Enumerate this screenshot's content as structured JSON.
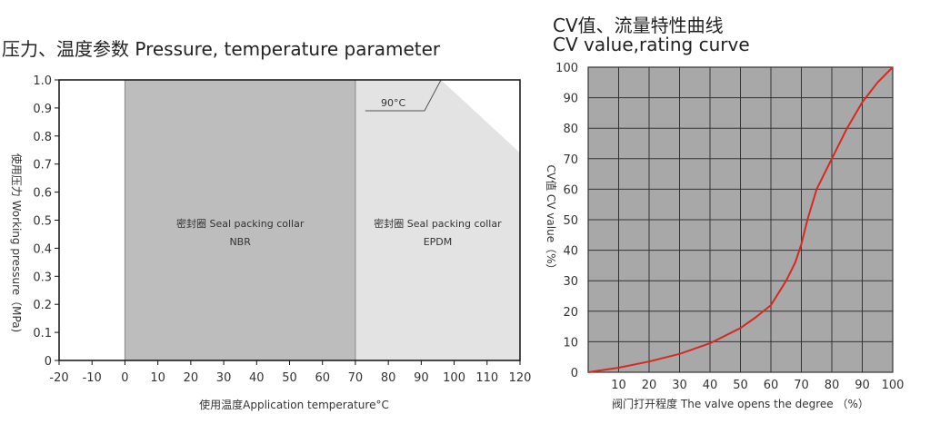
{
  "chart_data": [
    {
      "type": "area",
      "title": "压力、温度参数 Pressure, temperature parameter",
      "xlabel": "使用温度Application temperature°C",
      "ylabel": "使用压力 Working pressure（MPa)",
      "xlim": [
        -20,
        120
      ],
      "ylim": [
        0,
        1.0
      ],
      "x_ticks": [
        "-20",
        "-10",
        "0",
        "10",
        "20",
        "30",
        "40",
        "50",
        "60",
        "70",
        "80",
        "90",
        "100",
        "110",
        "120"
      ],
      "y_ticks": [
        "0",
        "0.1",
        "0.2",
        "0.3",
        "0.4",
        "0.5",
        "0.6",
        "0.7",
        "0.8",
        "0.9",
        "1.0"
      ],
      "regions": [
        {
          "name": "密封圈 Seal packing collar",
          "material": "NBR",
          "x_range": [
            0,
            70
          ],
          "color": "#bdbdbd"
        },
        {
          "name": "密封圈 Seal packing collar",
          "material": "EPDM",
          "x_range": [
            70,
            120
          ],
          "color": "#e3e3e3",
          "boundary": [
            [
              70,
              1.0
            ],
            [
              96,
              1.0
            ],
            [
              120,
              0.74
            ],
            [
              120,
              0
            ],
            [
              70,
              0
            ]
          ]
        }
      ],
      "annotation": "90°C",
      "grid": false
    },
    {
      "type": "line",
      "title": "CV值、流量特性曲线",
      "subtitle": "CV value,rating curve",
      "xlabel": "阀门打开程度 The valve opens the degree （%）",
      "ylabel": "CV值 CV value（%）",
      "xlim": [
        0,
        100
      ],
      "ylim": [
        0,
        100
      ],
      "x_ticks": [
        "10",
        "20",
        "30",
        "40",
        "50",
        "60",
        "70",
        "80",
        "90",
        "100"
      ],
      "y_ticks": [
        "0",
        "10",
        "20",
        "30",
        "40",
        "50",
        "60",
        "70",
        "80",
        "90",
        "100"
      ],
      "grid": true,
      "background": "#a8a8a8",
      "line_color": "#d42a20",
      "x": [
        0,
        10,
        20,
        30,
        40,
        50,
        55,
        60,
        65,
        68,
        70,
        72,
        75,
        80,
        85,
        90,
        95,
        100
      ],
      "y": [
        0,
        1.5,
        3.5,
        6,
        9.5,
        14.5,
        18,
        22,
        30,
        36,
        42,
        50,
        60,
        70,
        80,
        88.5,
        95,
        100
      ]
    }
  ]
}
